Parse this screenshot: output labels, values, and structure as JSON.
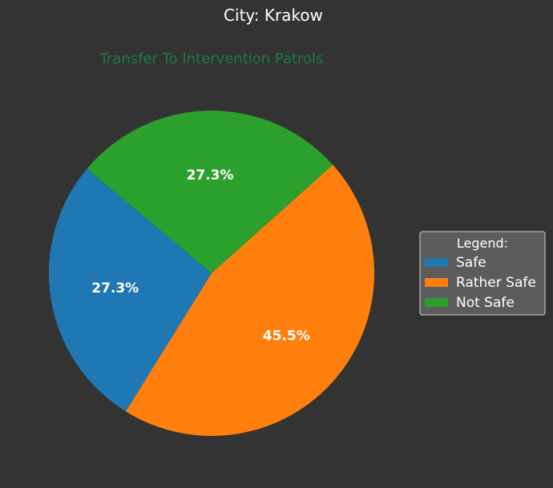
{
  "chart_data": {
    "type": "pie",
    "title": "City: Krakow",
    "subtitle": "Transfer To Intervention Patrols",
    "categories": [
      "Safe",
      "Rather Safe",
      "Not Safe"
    ],
    "values": [
      27.3,
      45.5,
      27.3
    ],
    "labels": [
      "27.3%",
      "45.5%",
      "27.3%"
    ],
    "colors": [
      "#1f77b4",
      "#ff7f0e",
      "#2ca02c"
    ],
    "start_angle_deg": 140,
    "direction": "counterclockwise",
    "legend": {
      "title": "Legend:",
      "placement": "right"
    },
    "background": "#333333",
    "title_color": "#ffffff",
    "subtitle_color": "#1e7b3c"
  }
}
